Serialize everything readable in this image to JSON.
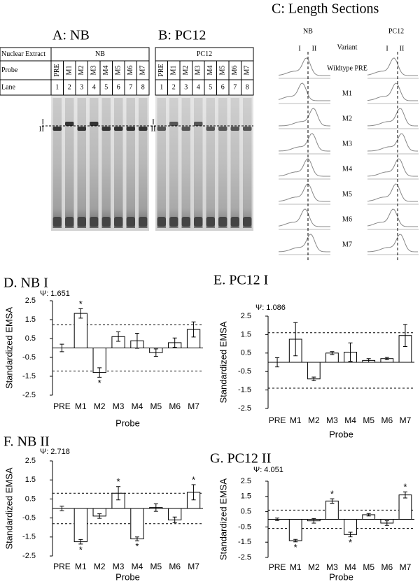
{
  "panels": {
    "A": {
      "title": "A: NB",
      "table": {
        "rows": [
          [
            "Nuclear Extract",
            "NB"
          ],
          [
            "Probe",
            "PRE",
            "M1",
            "M2",
            "M3",
            "M4",
            "M5",
            "M6",
            "M7"
          ],
          [
            "Lane",
            "1",
            "2",
            "3",
            "4",
            "5",
            "6",
            "7",
            "8"
          ]
        ]
      },
      "bands": [
        "I",
        "II"
      ]
    },
    "B": {
      "title": "B: PC12",
      "table": {
        "rows": [
          [
            "PC12"
          ],
          [
            "PRE",
            "M1",
            "M2",
            "M3",
            "M4",
            "M5",
            "M6",
            "M7"
          ],
          [
            "1",
            "2",
            "3",
            "4",
            "5",
            "6",
            "7",
            "8"
          ]
        ]
      },
      "bands": [
        "I",
        "II"
      ]
    },
    "C": {
      "title": "C: Length Sections",
      "columns": [
        "NB",
        "PC12"
      ],
      "bands": [
        "I",
        "II"
      ],
      "header": "Variant",
      "variants": [
        "Wildtype PRE",
        "M1",
        "M2",
        "M3",
        "M4",
        "M5",
        "M6",
        "M7"
      ]
    }
  },
  "chart_data": [
    {
      "type": "bar",
      "title": "D. NB I",
      "subtitle": "Ψ: 1.651",
      "x_label": "Probe",
      "y_label": "Standardized EMSA",
      "categories": [
        "PRE",
        "M1",
        "M2",
        "M3",
        "M4",
        "M5",
        "M6",
        "M7"
      ],
      "values": [
        0,
        1.83,
        -1.3,
        0.6,
        0.38,
        -0.25,
        0.28,
        0.98
      ],
      "errors": [
        0.2,
        0.25,
        0.25,
        0.25,
        0.4,
        0.2,
        0.25,
        0.4
      ],
      "significance": [
        null,
        "*",
        "*",
        null,
        null,
        null,
        null,
        null
      ],
      "thresholds": [
        1.22,
        -1.22
      ],
      "ylim": [
        -2.5,
        2.5
      ],
      "yticks": [
        -2.5,
        -1.5,
        -0.5,
        0.5,
        1.5,
        2.5
      ],
      "color": "#ffffff",
      "edge_color": "#000000"
    },
    {
      "type": "bar",
      "title": "E. PC12 I",
      "subtitle": "Ψ: 1.086",
      "x_label": "Probe",
      "y_label": "Standardized EMSA",
      "categories": [
        "PRE",
        "M1",
        "M2",
        "M3",
        "M4",
        "M5",
        "M6",
        "M7"
      ],
      "values": [
        0,
        1.25,
        -0.9,
        0.5,
        0.55,
        0.1,
        0.2,
        1.45
      ],
      "errors": [
        0.25,
        0.9,
        0.1,
        0.08,
        0.5,
        0.1,
        0.06,
        0.6
      ],
      "significance": [
        null,
        null,
        null,
        null,
        null,
        null,
        null,
        null
      ],
      "thresholds": [
        1.6,
        -1.4
      ],
      "ylim": [
        -2.5,
        2.5
      ],
      "yticks": [
        -2.5,
        -1.5,
        -0.5,
        0.5,
        1.5,
        2.5
      ],
      "color": "#ffffff",
      "edge_color": "#000000"
    },
    {
      "type": "bar",
      "title": "F. NB II",
      "subtitle": "Ψ: 2.718",
      "x_label": "Probe",
      "y_label": "Standardized EMSA",
      "categories": [
        "PRE",
        "M1",
        "M2",
        "M3",
        "M4",
        "M5",
        "M6",
        "M7"
      ],
      "values": [
        0,
        -1.75,
        -0.4,
        0.8,
        -1.6,
        0.05,
        -0.6,
        0.85
      ],
      "errors": [
        0.12,
        0.12,
        0.12,
        0.35,
        0.1,
        0.2,
        0.15,
        0.4
      ],
      "significance": [
        null,
        "*",
        null,
        "*",
        "*",
        null,
        null,
        "*"
      ],
      "thresholds": [
        0.8,
        -0.8
      ],
      "ylim": [
        -2.5,
        2.5
      ],
      "yticks": [
        -2.5,
        -1.5,
        -0.5,
        0.5,
        1.5,
        2.5
      ],
      "color": "#ffffff",
      "edge_color": "#000000"
    },
    {
      "type": "bar",
      "title": "G. PC12 II",
      "subtitle": "Ψ: 4.051",
      "x_label": "Probe",
      "y_label": "Standardized EMSA",
      "categories": [
        "PRE",
        "M1",
        "M2",
        "M3",
        "M4",
        "M5",
        "M6",
        "M7"
      ],
      "values": [
        0,
        -1.4,
        -0.1,
        1.2,
        -1.0,
        0.3,
        -0.25,
        1.6
      ],
      "errors": [
        0.08,
        0.08,
        0.15,
        0.15,
        0.15,
        0.08,
        0.15,
        0.2
      ],
      "significance": [
        null,
        "*",
        null,
        "*",
        "*",
        null,
        null,
        "*"
      ],
      "thresholds": [
        0.6,
        -0.6
      ],
      "ylim": [
        -2.5,
        2.5
      ],
      "yticks": [
        -2.5,
        -1.5,
        -0.5,
        0.5,
        1.5,
        2.5
      ],
      "color": "#ffffff",
      "edge_color": "#000000"
    }
  ]
}
